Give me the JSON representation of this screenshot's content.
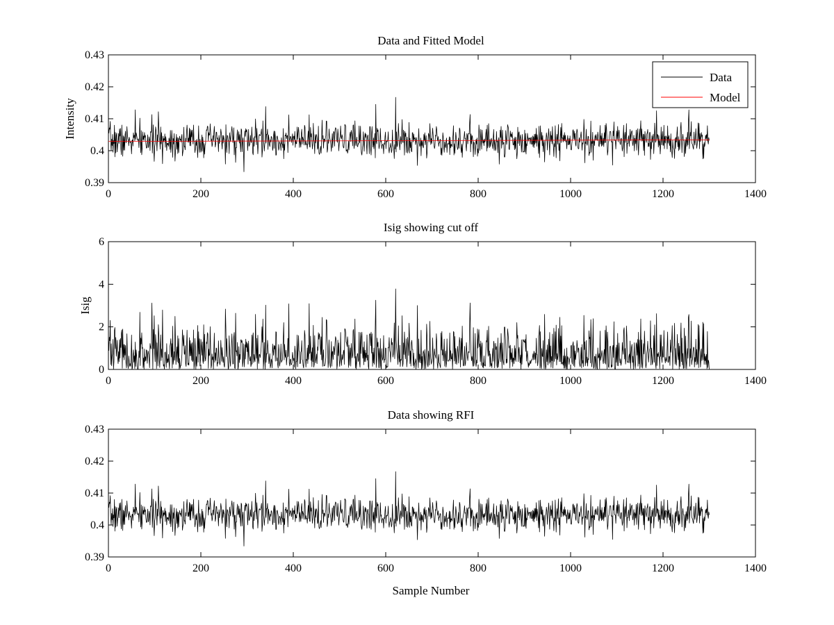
{
  "chart_data": [
    {
      "type": "line",
      "title": "Data and Fitted Model",
      "xlabel": "",
      "ylabel": "Intensity",
      "xlim": [
        0,
        1400
      ],
      "ylim": [
        0.39,
        0.43
      ],
      "xticks": [
        0,
        200,
        400,
        600,
        800,
        1000,
        1200,
        1400
      ],
      "yticks": [
        0.39,
        0.4,
        0.41,
        0.42,
        0.43
      ],
      "xtick_labels": [
        "0",
        "200",
        "400",
        "600",
        "800",
        "1000",
        "1200",
        "1400"
      ],
      "ytick_labels": [
        "0.39",
        "0.4",
        "0.41",
        "0.42",
        "0.43"
      ],
      "legend": {
        "position": "top-right",
        "entries": [
          "Data",
          "Model"
        ]
      },
      "series": [
        {
          "name": "Data",
          "color": "#000000",
          "kind": "noise",
          "n": 1300,
          "x_start": 0,
          "x_end": 1300,
          "mean": 0.4032,
          "spread": 0.0026,
          "min": 0.3934,
          "max": 0.4167,
          "seed": 7,
          "peaks": [
            [
              58,
              0.4128
            ],
            [
              108,
              0.4122
            ],
            [
              340,
              0.4138
            ],
            [
              578,
              0.4145
            ],
            [
              621,
              0.4167
            ],
            [
              695,
              0.4085
            ],
            [
              1090,
              0.3955
            ],
            [
              1185,
              0.4125
            ],
            [
              1255,
              0.4128
            ],
            [
              293,
              0.3934
            ],
            [
              845,
              0.3958
            ],
            [
              1030,
              0.3962
            ]
          ]
        },
        {
          "name": "Model",
          "color": "#ff0000",
          "kind": "line",
          "x": [
            0,
            1300
          ],
          "y": [
            0.4029,
            0.4034
          ]
        }
      ]
    },
    {
      "type": "line",
      "title": "Isig showing cut off",
      "xlabel": "",
      "ylabel": "Isig",
      "xlim": [
        0,
        1400
      ],
      "ylim": [
        0,
        6
      ],
      "xticks": [
        0,
        200,
        400,
        600,
        800,
        1000,
        1200,
        1400
      ],
      "yticks": [
        0,
        2,
        4,
        6
      ],
      "xtick_labels": [
        "0",
        "200",
        "400",
        "600",
        "800",
        "1000",
        "1200",
        "1400"
      ],
      "ytick_labels": [
        "0",
        "2",
        "4",
        "6"
      ],
      "series": [
        {
          "name": "",
          "color": "#000000",
          "kind": "abs",
          "n": 1300,
          "x_start": 0,
          "x_end": 1300,
          "seed": 7,
          "reference": 0.4032,
          "scale": 0.0026,
          "max": 3.8,
          "peaks": [
            [
              340,
              3.02
            ],
            [
              578,
              3.25
            ],
            [
              621,
              3.78
            ],
            [
              1185,
              2.62
            ],
            [
              1255,
              2.58
            ]
          ]
        }
      ]
    },
    {
      "type": "line",
      "title": "Data showing RFI",
      "xlabel": "Sample Number",
      "ylabel": "",
      "xlim": [
        0,
        1400
      ],
      "ylim": [
        0.39,
        0.43
      ],
      "xticks": [
        0,
        200,
        400,
        600,
        800,
        1000,
        1200,
        1400
      ],
      "yticks": [
        0.39,
        0.4,
        0.41,
        0.42,
        0.43
      ],
      "xtick_labels": [
        "0",
        "200",
        "400",
        "600",
        "800",
        "1000",
        "1200",
        "1400"
      ],
      "ytick_labels": [
        "0.39",
        "0.4",
        "0.41",
        "0.42",
        "0.43"
      ],
      "series": [
        {
          "name": "",
          "color": "#000000",
          "kind": "noise",
          "n": 1300,
          "x_start": 0,
          "x_end": 1300,
          "mean": 0.4032,
          "spread": 0.0026,
          "min": 0.3934,
          "max": 0.4167,
          "seed": 7,
          "peaks": [
            [
              58,
              0.4128
            ],
            [
              108,
              0.4122
            ],
            [
              340,
              0.4138
            ],
            [
              578,
              0.4145
            ],
            [
              621,
              0.4167
            ],
            [
              695,
              0.4085
            ],
            [
              1090,
              0.3955
            ],
            [
              1185,
              0.4125
            ],
            [
              1255,
              0.4128
            ],
            [
              293,
              0.3934
            ],
            [
              845,
              0.3958
            ],
            [
              1030,
              0.3962
            ]
          ]
        }
      ]
    }
  ]
}
